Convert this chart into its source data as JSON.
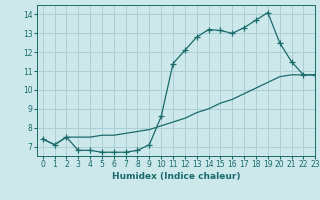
{
  "xlabel": "Humidex (Indice chaleur)",
  "ylabel": "",
  "background_color": "#cce8ea",
  "grid_color": "#aacfd4",
  "line_color": "#1a6b6b",
  "xlim": [
    -0.5,
    23
  ],
  "ylim": [
    6.5,
    14.5
  ],
  "xticks": [
    0,
    1,
    2,
    3,
    4,
    5,
    6,
    7,
    8,
    9,
    10,
    11,
    12,
    13,
    14,
    15,
    16,
    17,
    18,
    19,
    20,
    21,
    22,
    23
  ],
  "yticks": [
    7,
    8,
    9,
    10,
    11,
    12,
    13,
    14
  ],
  "curve1_x": [
    0,
    1,
    2,
    3,
    4,
    5,
    6,
    7,
    8,
    9,
    10,
    11,
    12,
    13,
    14,
    15,
    16,
    17,
    18,
    19,
    20,
    21,
    22,
    23
  ],
  "curve1_y": [
    7.4,
    7.1,
    7.5,
    6.8,
    6.8,
    6.7,
    6.7,
    6.7,
    6.8,
    7.1,
    8.6,
    11.4,
    12.1,
    12.8,
    13.2,
    13.15,
    13.0,
    13.3,
    13.7,
    14.1,
    12.5,
    11.5,
    10.8,
    10.8
  ],
  "curve2_x": [
    0,
    1,
    2,
    3,
    4,
    5,
    6,
    7,
    8,
    9,
    10,
    11,
    12,
    13,
    14,
    15,
    16,
    17,
    18,
    19,
    20,
    21,
    22,
    23
  ],
  "curve2_y": [
    7.4,
    7.1,
    7.5,
    7.5,
    7.5,
    7.6,
    7.6,
    7.7,
    7.8,
    7.9,
    8.1,
    8.3,
    8.5,
    8.8,
    9.0,
    9.3,
    9.5,
    9.8,
    10.1,
    10.4,
    10.7,
    10.8,
    10.8,
    10.8
  ],
  "tick_labelsize": 5.5,
  "xlabel_fontsize": 6.5,
  "marker_size": 2.5
}
